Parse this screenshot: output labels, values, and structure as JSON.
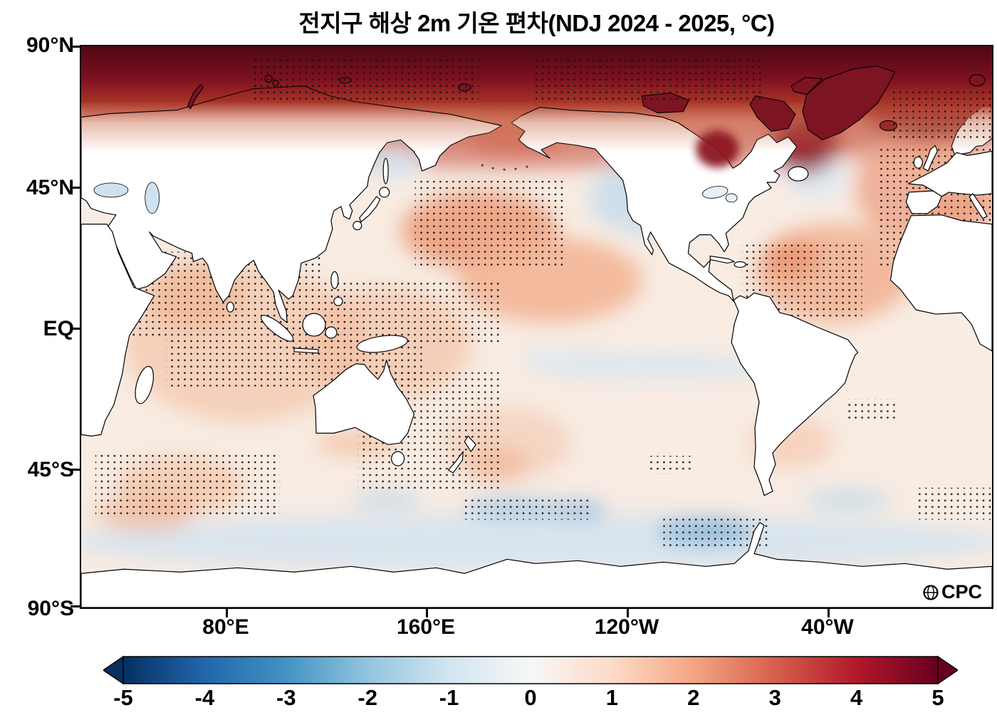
{
  "title": "전지구 해상 2m 기온 편차(NDJ 2024 - 2025, °C)",
  "axes": {
    "lat": [
      "90°N",
      "45°N",
      "EQ",
      "45°S",
      "90°S"
    ],
    "lon": [
      "80°E",
      "160°E",
      "120°W",
      "40°W"
    ]
  },
  "colorbar": {
    "min": -5,
    "max": 5,
    "unit": "°C",
    "ticks": [
      "-5",
      "-4",
      "-3",
      "-2",
      "-1",
      "0",
      "1",
      "2",
      "3",
      "4",
      "5"
    ],
    "palette": [
      "#053061",
      "#2166ac",
      "#4393c3",
      "#92c5de",
      "#d1e5f0",
      "#f7f7f7",
      "#fddbc7",
      "#f4a582",
      "#d6604d",
      "#b2182b",
      "#67001f"
    ]
  },
  "logo": {
    "text": "CPC"
  },
  "colors": {
    "ocean_base": "#f8ece3",
    "land": "#ffffff",
    "coastline": "#000000",
    "arctic_dark_red": "#5a0a14",
    "stipple_dot": "#111111"
  }
}
